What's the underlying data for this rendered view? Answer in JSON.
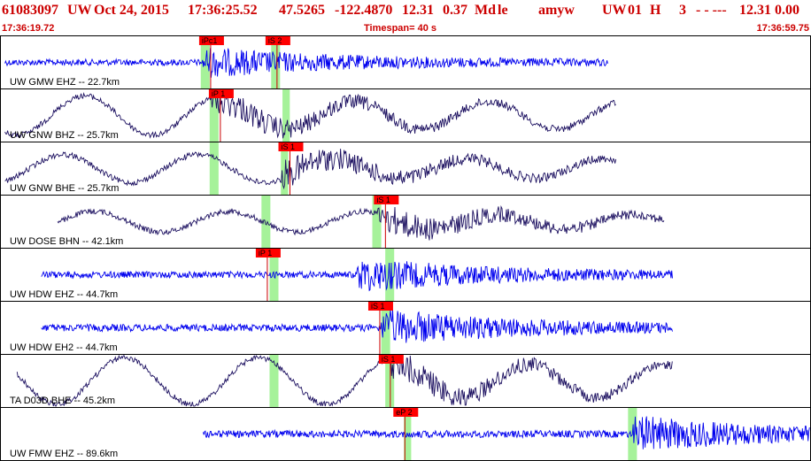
{
  "header": {
    "event_id": "61083097",
    "network": "UW",
    "date": "Oct 24, 2015",
    "time": "17:36:25.52",
    "lat": "47.5265",
    "lon": "-122.4870",
    "depth": "12.31",
    "mag": "0.37",
    "mag_type": "Md",
    "flag": "le",
    "user": "amyw",
    "net_code": "UW",
    "version": "01",
    "quality": "H",
    "n": "3",
    "dashes": "- - ---",
    "end_values": "12.31 0.00"
  },
  "subheader": {
    "start_time": "17:36:19.72",
    "timespan": "Timespan=  40 s",
    "end_time": "17:36:59.75"
  },
  "colors": {
    "header_text": "#cc0000",
    "pick_box": "#ff0000",
    "pick_text": "#ffffff",
    "window": "#a6f29a",
    "trace_blue": "#0000ee",
    "trace_navy": "#1c1060"
  },
  "channels": [
    {
      "label": "UW GMW EHZ -- 22.7km",
      "color": "blue",
      "style": "hf",
      "start": 0.005,
      "end": 0.75,
      "onset": 0.25,
      "amp": 0.18,
      "picks": [
        {
          "text": "iPc1",
          "t": 0.245
        },
        {
          "text": "iS 2",
          "t": 0.327
        }
      ],
      "windows": [
        {
          "t": 0.247,
          "w": 0.011
        },
        {
          "t": 0.334,
          "w": 0.011
        }
      ]
    },
    {
      "label": "UW GNW BHZ -- 25.7km",
      "color": "navy",
      "style": "lf",
      "start": 0.005,
      "end": 0.76,
      "onset": 0.26,
      "amp": 0.42,
      "picks": [
        {
          "text": "iP 1",
          "t": 0.257
        }
      ],
      "windows": [
        {
          "t": 0.258,
          "w": 0.011
        },
        {
          "t": 0.348,
          "w": 0.009
        }
      ]
    },
    {
      "label": "UW GNW BHE -- 25.7km",
      "color": "navy",
      "style": "lf",
      "start": 0.005,
      "end": 0.76,
      "onset": 0.345,
      "amp": 0.3,
      "picks": [
        {
          "text": "iS 1",
          "t": 0.343
        }
      ],
      "windows": [
        {
          "t": 0.258,
          "w": 0.011
        },
        {
          "t": 0.346,
          "w": 0.009
        }
      ]
    },
    {
      "label": "UW DOSE BHN -- 42.1km",
      "color": "navy",
      "style": "lf",
      "start": 0.07,
      "end": 0.82,
      "onset": 0.465,
      "amp": 0.22,
      "picks": [
        {
          "text": "iS 1",
          "t": 0.461
        }
      ],
      "windows": [
        {
          "t": 0.322,
          "w": 0.011
        },
        {
          "t": 0.459,
          "w": 0.011
        }
      ]
    },
    {
      "label": "UW HDW EHZ -- 44.7km",
      "color": "blue",
      "style": "hf",
      "start": 0.05,
      "end": 0.83,
      "onset": 0.44,
      "amp": 0.2,
      "picks": [
        {
          "text": "iP 1",
          "t": 0.315
        }
      ],
      "windows": [
        {
          "t": 0.332,
          "w": 0.011
        },
        {
          "t": 0.475,
          "w": 0.011
        }
      ]
    },
    {
      "label": "UW HDW EH2 -- 44.7km",
      "color": "blue",
      "style": "hf",
      "start": 0.05,
      "end": 0.83,
      "onset": 0.47,
      "amp": 0.22,
      "picks": [
        {
          "text": "iS 1",
          "t": 0.454
        }
      ],
      "windows": [
        {
          "t": 0.47,
          "w": 0.011
        }
      ]
    },
    {
      "label": "TA D03D BHE -- 45.2km",
      "color": "navy",
      "style": "lf",
      "start": 0.02,
      "end": 0.83,
      "onset": 0.48,
      "amp": 0.5,
      "picks": [
        {
          "text": "iS 1",
          "t": 0.467
        }
      ],
      "windows": [
        {
          "t": 0.332,
          "w": 0.011
        },
        {
          "t": 0.475,
          "w": 0.011
        }
      ]
    },
    {
      "label": "UW FMW EHZ -- 89.6km",
      "color": "blue",
      "style": "hf",
      "start": 0.25,
      "end": 1.0,
      "onset": 0.78,
      "amp": 0.22,
      "picks": [
        {
          "text": "eP 2",
          "t": 0.485
        }
      ],
      "windows": [
        {
          "t": 0.498,
          "w": 0.009
        },
        {
          "t": 0.775,
          "w": 0.011
        }
      ]
    }
  ]
}
